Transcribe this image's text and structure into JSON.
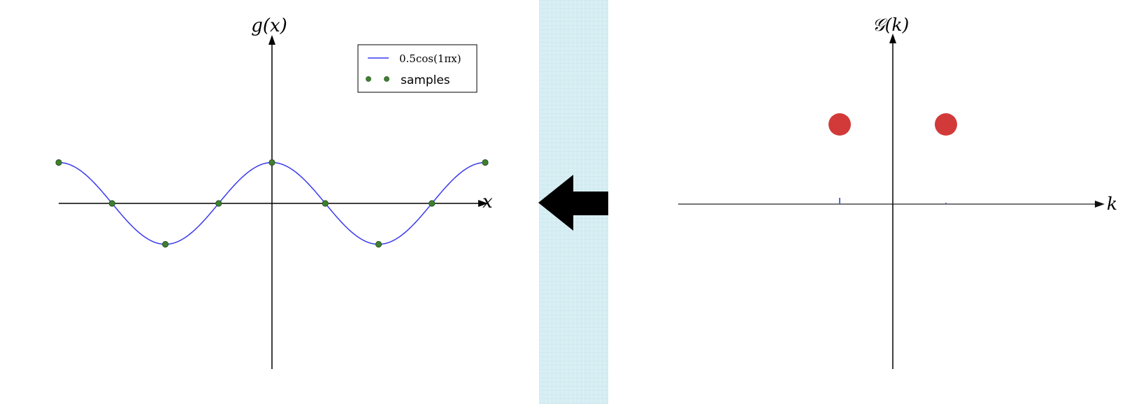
{
  "left_plot": {
    "y_axis_label": "g(x)",
    "x_axis_label": "x",
    "legend": {
      "curve_label": "0.5cos(1πx)",
      "samples_label": "samples"
    },
    "colors": {
      "curve": "#3a3aee",
      "samples": "#3f7f2f",
      "axis": "#000000"
    }
  },
  "transition": {
    "arrow_icon": "arrow-left-icon",
    "panel_color": "#d6eef3"
  },
  "right_plot": {
    "y_axis_label": "𝒢(k)",
    "x_axis_label": "k",
    "colors": {
      "dots": "#d23a3a",
      "axis": "#777777",
      "ticks": "#5a64dd"
    }
  },
  "chart_data": [
    {
      "type": "line",
      "series": [
        {
          "name": "0.5cos(1πx)",
          "amplitude": 0.5,
          "frequency": 1,
          "function": "cos"
        }
      ],
      "xlim": [
        -2,
        2
      ],
      "ylim": [
        -1.5,
        1.5
      ]
    },
    {
      "type": "scatter",
      "series": [
        {
          "name": "samples",
          "x": [
            -2,
            -1.5,
            -1,
            -0.5,
            0,
            0.5,
            1,
            1.5,
            2
          ],
          "y": [
            0.5,
            0,
            -0.5,
            0,
            0.5,
            0,
            -0.5,
            0,
            0.5
          ]
        }
      ],
      "xlim": [
        -2,
        2
      ],
      "ylim": [
        -1.5,
        1.5
      ]
    },
    {
      "type": "scatter",
      "series": [
        {
          "x": [
            -0.5,
            0.5
          ],
          "y": [
            1,
            1
          ]
        }
      ],
      "xlim": [
        -2,
        2
      ],
      "ylim": [
        -1.5,
        1.5
      ]
    }
  ]
}
